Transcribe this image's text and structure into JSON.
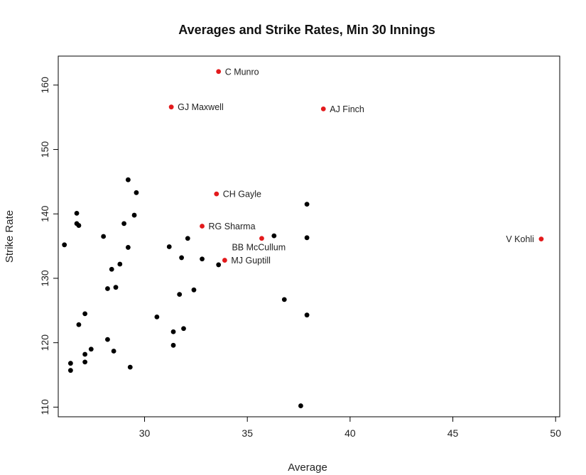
{
  "chart_data": {
    "type": "scatter",
    "title": "Averages and Strike Rates, Min 30 Innings",
    "xlabel": "Average",
    "ylabel": "Strike Rate",
    "xlim": [
      25.8,
      50.2
    ],
    "ylim": [
      108.5,
      164.5
    ],
    "xticks": [
      30,
      35,
      40,
      45,
      50
    ],
    "yticks": [
      110,
      120,
      130,
      140,
      150,
      160
    ],
    "grid": false,
    "colors": {
      "highlighted": "#e31a1c",
      "other": "#000000"
    },
    "labeled_points": [
      {
        "name": "C Munro",
        "x": 33.6,
        "y": 162.1
      },
      {
        "name": "GJ Maxwell",
        "x": 31.3,
        "y": 156.6
      },
      {
        "name": "AJ Finch",
        "x": 38.7,
        "y": 156.3
      },
      {
        "name": "CH Gayle",
        "x": 33.5,
        "y": 143.1
      },
      {
        "name": "RG Sharma",
        "x": 32.8,
        "y": 138.1
      },
      {
        "name": "BB McCullum",
        "x": 35.7,
        "y": 136.2
      },
      {
        "name": "MJ Guptill",
        "x": 33.9,
        "y": 132.8
      },
      {
        "name": "V Kohli",
        "x": 49.3,
        "y": 136.1
      }
    ],
    "other_points": [
      {
        "x": 26.1,
        "y": 135.2
      },
      {
        "x": 26.4,
        "y": 116.8
      },
      {
        "x": 26.4,
        "y": 115.7
      },
      {
        "x": 26.7,
        "y": 140.1
      },
      {
        "x": 26.7,
        "y": 138.5
      },
      {
        "x": 26.8,
        "y": 138.2
      },
      {
        "x": 26.8,
        "y": 122.8
      },
      {
        "x": 27.1,
        "y": 124.5
      },
      {
        "x": 27.1,
        "y": 118.2
      },
      {
        "x": 27.1,
        "y": 117.0
      },
      {
        "x": 27.4,
        "y": 119.0
      },
      {
        "x": 28.0,
        "y": 136.5
      },
      {
        "x": 28.2,
        "y": 128.4
      },
      {
        "x": 28.2,
        "y": 120.5
      },
      {
        "x": 28.4,
        "y": 131.4
      },
      {
        "x": 28.5,
        "y": 118.7
      },
      {
        "x": 28.6,
        "y": 128.6
      },
      {
        "x": 28.8,
        "y": 132.2
      },
      {
        "x": 29.0,
        "y": 138.5
      },
      {
        "x": 29.2,
        "y": 145.3
      },
      {
        "x": 29.2,
        "y": 134.8
      },
      {
        "x": 29.3,
        "y": 116.2
      },
      {
        "x": 29.5,
        "y": 139.8
      },
      {
        "x": 29.6,
        "y": 143.3
      },
      {
        "x": 30.6,
        "y": 124.0
      },
      {
        "x": 31.2,
        "y": 134.9
      },
      {
        "x": 31.4,
        "y": 121.7
      },
      {
        "x": 31.4,
        "y": 119.6
      },
      {
        "x": 31.7,
        "y": 127.5
      },
      {
        "x": 31.8,
        "y": 133.2
      },
      {
        "x": 31.9,
        "y": 122.2
      },
      {
        "x": 32.1,
        "y": 136.2
      },
      {
        "x": 32.4,
        "y": 128.2
      },
      {
        "x": 32.8,
        "y": 133.0
      },
      {
        "x": 33.6,
        "y": 132.1
      },
      {
        "x": 36.3,
        "y": 136.6
      },
      {
        "x": 36.8,
        "y": 126.7
      },
      {
        "x": 37.6,
        "y": 110.2
      },
      {
        "x": 37.9,
        "y": 141.5
      },
      {
        "x": 37.9,
        "y": 136.3
      },
      {
        "x": 37.9,
        "y": 124.3
      }
    ]
  }
}
